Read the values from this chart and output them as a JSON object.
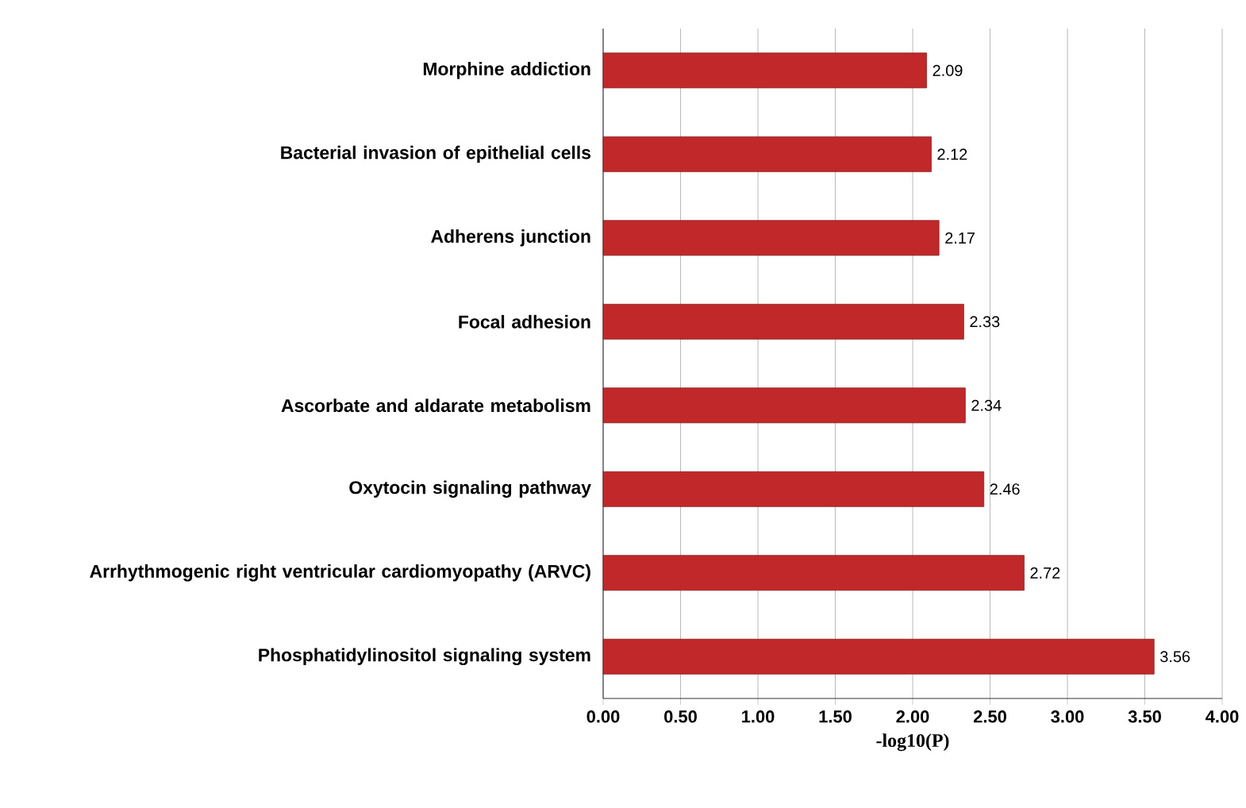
{
  "chart_data": {
    "type": "bar",
    "orientation": "horizontal",
    "xlabel": "-log10(P)",
    "categories": [
      "Morphine addiction",
      "Bacterial invasion of epithelial cells",
      "Adherens junction",
      "Focal adhesion",
      "Ascorbate and aldarate metabolism",
      "Oxytocin signaling pathway",
      "Arrhythmogenic right ventricular cardiomyopathy (ARVC)",
      "Phosphatidylinositol signaling system"
    ],
    "values": [
      2.09,
      2.12,
      2.17,
      2.33,
      2.34,
      2.46,
      2.72,
      3.56
    ],
    "color": "#c0282a",
    "xlim": [
      0,
      4
    ],
    "xticks": [
      {
        "value": 0,
        "label": "0.00"
      },
      {
        "value": 0.5,
        "label": "0.50"
      },
      {
        "value": 1,
        "label": "1.00"
      },
      {
        "value": 1.5,
        "label": "1.50"
      },
      {
        "value": 2,
        "label": "2.00"
      },
      {
        "value": 2.5,
        "label": "2.50"
      },
      {
        "value": 3,
        "label": "3.00"
      },
      {
        "value": 3.5,
        "label": "3.50"
      },
      {
        "value": 4,
        "label": "4.00"
      }
    ],
    "grid": "x",
    "data_labels": true
  }
}
